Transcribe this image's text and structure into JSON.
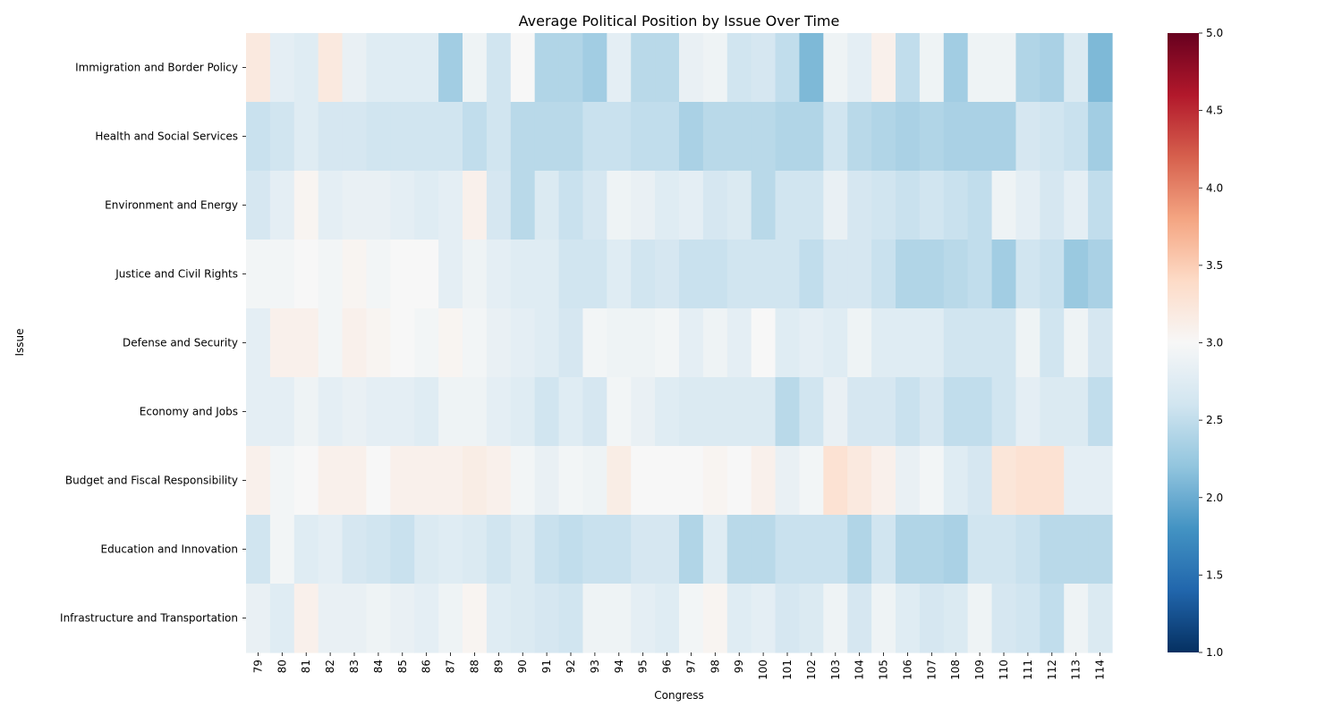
{
  "chart_data": {
    "type": "heatmap",
    "title": "Average Political Position by Issue Over Time",
    "xlabel": "Congress",
    "ylabel": "Issue",
    "x": [
      "79",
      "80",
      "81",
      "82",
      "83",
      "84",
      "85",
      "86",
      "87",
      "88",
      "89",
      "90",
      "91",
      "92",
      "93",
      "94",
      "95",
      "96",
      "97",
      "98",
      "99",
      "100",
      "101",
      "102",
      "103",
      "104",
      "105",
      "106",
      "107",
      "108",
      "109",
      "110",
      "111",
      "112",
      "113",
      "114"
    ],
    "y": [
      "Immigration and Border Policy",
      "Health and Social Services",
      "Environment and Energy",
      "Justice and Civil Rights",
      "Defense and Security",
      "Economy and Jobs",
      "Budget and Fiscal Responsibility",
      "Education and Innovation",
      "Infrastructure and Transportation"
    ],
    "values": [
      [
        3.2,
        2.8,
        2.75,
        3.2,
        2.85,
        2.75,
        2.75,
        2.75,
        2.3,
        2.9,
        2.6,
        3.0,
        2.4,
        2.4,
        2.3,
        2.8,
        2.45,
        2.45,
        2.85,
        2.9,
        2.6,
        2.65,
        2.5,
        2.1,
        2.9,
        2.8,
        3.1,
        2.5,
        2.9,
        2.3,
        2.9,
        2.9,
        2.4,
        2.35,
        2.7,
        2.1
      ],
      [
        2.55,
        2.6,
        2.75,
        2.65,
        2.65,
        2.6,
        2.6,
        2.6,
        2.6,
        2.5,
        2.6,
        2.45,
        2.45,
        2.45,
        2.55,
        2.55,
        2.5,
        2.5,
        2.35,
        2.45,
        2.45,
        2.45,
        2.4,
        2.4,
        2.6,
        2.45,
        2.4,
        2.35,
        2.4,
        2.35,
        2.35,
        2.35,
        2.65,
        2.6,
        2.55,
        2.3
      ],
      [
        2.65,
        2.8,
        3.05,
        2.8,
        2.85,
        2.85,
        2.8,
        2.75,
        2.8,
        3.1,
        2.65,
        2.45,
        2.7,
        2.55,
        2.65,
        2.9,
        2.85,
        2.75,
        2.8,
        2.65,
        2.7,
        2.45,
        2.6,
        2.6,
        2.85,
        2.65,
        2.6,
        2.55,
        2.6,
        2.55,
        2.5,
        2.9,
        2.8,
        2.65,
        2.8,
        2.5
      ],
      [
        2.95,
        2.95,
        3.0,
        2.95,
        3.05,
        2.95,
        3.0,
        3.0,
        2.8,
        2.9,
        2.8,
        2.75,
        2.75,
        2.6,
        2.6,
        2.75,
        2.6,
        2.65,
        2.55,
        2.55,
        2.6,
        2.6,
        2.6,
        2.5,
        2.65,
        2.65,
        2.55,
        2.4,
        2.4,
        2.45,
        2.5,
        2.3,
        2.6,
        2.55,
        2.25,
        2.35
      ],
      [
        2.8,
        3.1,
        3.1,
        2.95,
        3.1,
        3.05,
        3.0,
        2.95,
        3.05,
        2.95,
        2.85,
        2.8,
        2.75,
        2.65,
        2.95,
        2.9,
        2.9,
        2.95,
        2.8,
        2.9,
        2.8,
        3.0,
        2.75,
        2.8,
        2.75,
        2.9,
        2.75,
        2.75,
        2.75,
        2.6,
        2.6,
        2.6,
        2.9,
        2.6,
        2.9,
        2.65
      ],
      [
        2.8,
        2.8,
        2.9,
        2.8,
        2.85,
        2.8,
        2.8,
        2.75,
        2.9,
        2.9,
        2.8,
        2.75,
        2.6,
        2.75,
        2.65,
        2.95,
        2.85,
        2.75,
        2.7,
        2.7,
        2.7,
        2.7,
        2.45,
        2.6,
        2.85,
        2.65,
        2.65,
        2.55,
        2.65,
        2.5,
        2.5,
        2.6,
        2.8,
        2.7,
        2.7,
        2.5
      ],
      [
        3.1,
        2.95,
        3.0,
        3.1,
        3.1,
        3.0,
        3.1,
        3.1,
        3.1,
        3.15,
        3.1,
        2.95,
        2.85,
        2.95,
        2.9,
        3.15,
        3.0,
        3.0,
        3.0,
        3.05,
        3.0,
        3.1,
        2.85,
        2.95,
        3.3,
        3.2,
        3.1,
        2.85,
        2.95,
        2.75,
        2.65,
        3.25,
        3.3,
        3.3,
        2.8,
        2.8
      ],
      [
        2.6,
        2.95,
        2.75,
        2.8,
        2.65,
        2.6,
        2.55,
        2.7,
        2.75,
        2.7,
        2.6,
        2.7,
        2.55,
        2.5,
        2.55,
        2.55,
        2.65,
        2.65,
        2.4,
        2.75,
        2.45,
        2.45,
        2.55,
        2.55,
        2.55,
        2.4,
        2.6,
        2.4,
        2.4,
        2.35,
        2.6,
        2.6,
        2.55,
        2.45,
        2.45,
        2.45
      ],
      [
        2.85,
        2.75,
        3.1,
        2.85,
        2.85,
        2.9,
        2.85,
        2.8,
        2.9,
        3.05,
        2.75,
        2.7,
        2.65,
        2.6,
        2.9,
        2.9,
        2.8,
        2.75,
        2.95,
        3.05,
        2.75,
        2.8,
        2.65,
        2.7,
        2.9,
        2.65,
        2.9,
        2.75,
        2.65,
        2.7,
        2.9,
        2.65,
        2.6,
        2.5,
        2.9,
        2.7
      ]
    ],
    "colorbar": {
      "min": 1.0,
      "max": 5.0,
      "ticks": [
        "1.0",
        "1.5",
        "2.0",
        "2.5",
        "3.0",
        "3.5",
        "4.0",
        "4.5",
        "5.0"
      ],
      "colormap": "RdBu_r"
    }
  }
}
